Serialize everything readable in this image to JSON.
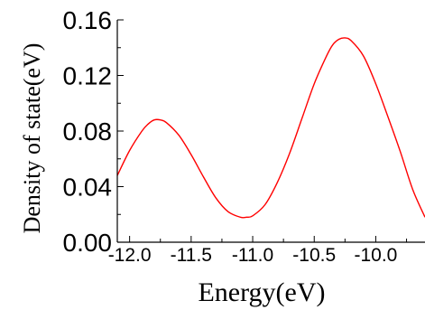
{
  "chart_data": {
    "type": "line",
    "title": "",
    "xlabel": "Energy(eV)",
    "ylabel": "Density of  state(eV)",
    "xlim": [
      -12.1,
      -9.6
    ],
    "ylim": [
      0.0,
      0.16
    ],
    "x_ticks": [
      -12.0,
      -11.5,
      -11.0,
      -10.5,
      -10.0
    ],
    "x_tick_labels": [
      "-12.0",
      "-11.5",
      "-11.0",
      "-10.5",
      "-10.0"
    ],
    "y_ticks": [
      0.0,
      0.04,
      0.08,
      0.12,
      0.16
    ],
    "y_tick_labels": [
      "0.00",
      "0.04",
      "0.08",
      "0.12",
      "0.16"
    ],
    "grid": false,
    "series": [
      {
        "color": "#ff0000",
        "x": [
          -12.1,
          -12.0,
          -11.9,
          -11.85,
          -11.8,
          -11.75,
          -11.7,
          -11.6,
          -11.5,
          -11.4,
          -11.3,
          -11.2,
          -11.1,
          -11.05,
          -11.0,
          -10.9,
          -10.8,
          -10.7,
          -10.6,
          -10.5,
          -10.4,
          -10.35,
          -10.3,
          -10.25,
          -10.2,
          -10.1,
          -10.0,
          -9.9,
          -9.8,
          -9.7,
          -9.6
        ],
        "y": [
          0.048,
          0.066,
          0.08,
          0.085,
          0.088,
          0.088,
          0.086,
          0.077,
          0.063,
          0.047,
          0.032,
          0.022,
          0.018,
          0.018,
          0.019,
          0.027,
          0.043,
          0.064,
          0.089,
          0.114,
          0.134,
          0.142,
          0.146,
          0.147,
          0.145,
          0.134,
          0.114,
          0.09,
          0.065,
          0.038,
          0.018
        ]
      }
    ]
  }
}
